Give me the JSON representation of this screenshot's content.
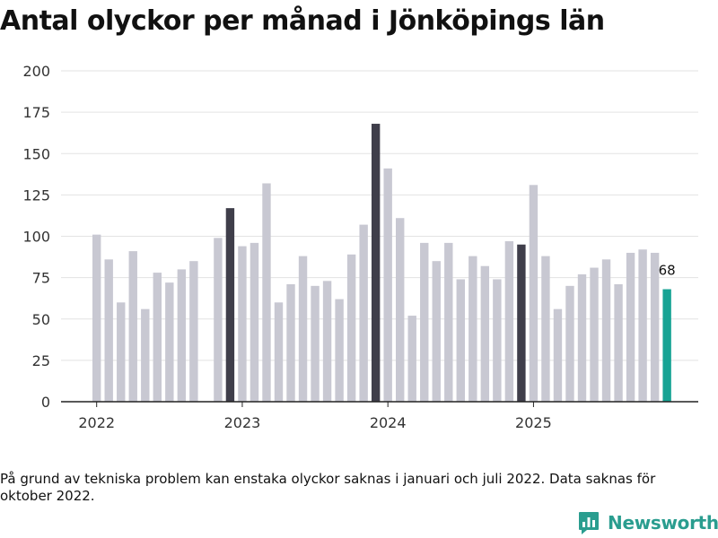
{
  "chart_data": {
    "type": "bar",
    "title": "Antal olyckor per månad i Jönköpings län",
    "xlabel": "",
    "ylabel": "",
    "ylim": [
      0,
      200
    ],
    "yticks": [
      0,
      25,
      50,
      75,
      100,
      125,
      150,
      175,
      200
    ],
    "xticks": [
      "2022",
      "2023",
      "2024",
      "2025"
    ],
    "grid": true,
    "series": [
      {
        "name": "Antal olyckor",
        "values": [
          101,
          86,
          60,
          91,
          56,
          78,
          72,
          80,
          85,
          null,
          99,
          117,
          94,
          96,
          132,
          60,
          71,
          88,
          70,
          73,
          62,
          89,
          107,
          168,
          141,
          111,
          52,
          96,
          85,
          96,
          74,
          88,
          82,
          74,
          97,
          95,
          131,
          88,
          56,
          70,
          77,
          81,
          86,
          71,
          90,
          92,
          90,
          68
        ],
        "highlight": {
          "11": "december",
          "23": "december",
          "35": "december",
          "47": "latest"
        }
      }
    ],
    "annotations": [
      {
        "index": 47,
        "text": "68"
      }
    ],
    "colors": {
      "default": "#c8c8d2",
      "december": "#3f3e4a",
      "latest": "#16a394",
      "grid": "#e3e3e3",
      "axis": "#222222"
    }
  },
  "footnote": "På grund av tekniska problem kan enstaka olyckor saknas i januari och juli 2022. Data saknas för oktober 2022.",
  "brand": {
    "name": "Newsworthy",
    "color": "#2a9d8f"
  }
}
